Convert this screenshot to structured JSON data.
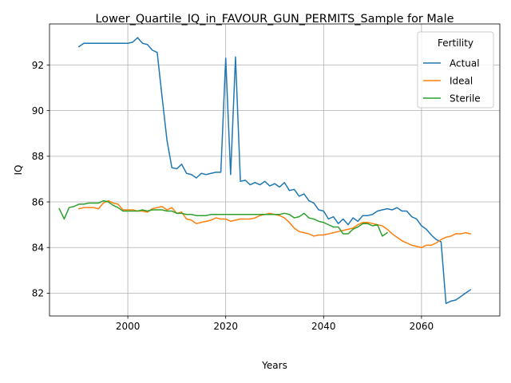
{
  "chart_data": {
    "type": "line",
    "title": "Lower_Quartile_IQ_in_FAVOUR_GUN_PERMITS_Sample for Male",
    "xlabel": "Years",
    "ylabel": "IQ",
    "xlim": [
      1984,
      2076
    ],
    "ylim": [
      81.0,
      93.8
    ],
    "xticks": [
      2000,
      2020,
      2040,
      2060
    ],
    "yticks": [
      82,
      84,
      86,
      88,
      90,
      92
    ],
    "grid": true,
    "legend": {
      "title": "Fertility",
      "placement": "top-right"
    },
    "series": [
      {
        "name": "Actual",
        "color": "#1f77b4",
        "points": [
          [
            1990,
            92.8
          ],
          [
            1991,
            92.95
          ],
          [
            1992,
            92.95
          ],
          [
            1993,
            92.95
          ],
          [
            1994,
            92.95
          ],
          [
            1995,
            92.95
          ],
          [
            1996,
            92.95
          ],
          [
            1997,
            92.95
          ],
          [
            1998,
            92.95
          ],
          [
            1999,
            92.95
          ],
          [
            2000,
            92.95
          ],
          [
            2001,
            93.0
          ],
          [
            2002,
            93.2
          ],
          [
            2003,
            92.95
          ],
          [
            2004,
            92.9
          ],
          [
            2005,
            92.65
          ],
          [
            2006,
            92.55
          ],
          [
            2007,
            90.6
          ],
          [
            2008,
            88.7
          ],
          [
            2009,
            87.5
          ],
          [
            2010,
            87.45
          ],
          [
            2011,
            87.65
          ],
          [
            2012,
            87.25
          ],
          [
            2013,
            87.2
          ],
          [
            2014,
            87.05
          ],
          [
            2015,
            87.25
          ],
          [
            2016,
            87.2
          ],
          [
            2017,
            87.25
          ],
          [
            2018,
            87.3
          ],
          [
            2019,
            87.3
          ],
          [
            2020,
            92.3
          ],
          [
            2021,
            87.2
          ],
          [
            2022,
            92.35
          ],
          [
            2023,
            86.9
          ],
          [
            2024,
            86.95
          ],
          [
            2025,
            86.75
          ],
          [
            2026,
            86.85
          ],
          [
            2027,
            86.75
          ],
          [
            2028,
            86.9
          ],
          [
            2029,
            86.7
          ],
          [
            2030,
            86.8
          ],
          [
            2031,
            86.65
          ],
          [
            2032,
            86.85
          ],
          [
            2033,
            86.5
          ],
          [
            2034,
            86.55
          ],
          [
            2035,
            86.25
          ],
          [
            2036,
            86.35
          ],
          [
            2037,
            86.05
          ],
          [
            2038,
            85.95
          ],
          [
            2039,
            85.65
          ],
          [
            2040,
            85.6
          ],
          [
            2041,
            85.25
          ],
          [
            2042,
            85.35
          ],
          [
            2043,
            85.05
          ],
          [
            2044,
            85.25
          ],
          [
            2045,
            85.0
          ],
          [
            2046,
            85.3
          ],
          [
            2047,
            85.15
          ],
          [
            2048,
            85.4
          ],
          [
            2049,
            85.4
          ],
          [
            2050,
            85.45
          ],
          [
            2051,
            85.6
          ],
          [
            2052,
            85.65
          ],
          [
            2053,
            85.7
          ],
          [
            2054,
            85.65
          ],
          [
            2055,
            85.75
          ],
          [
            2056,
            85.6
          ],
          [
            2057,
            85.6
          ],
          [
            2058,
            85.35
          ],
          [
            2059,
            85.25
          ],
          [
            2060,
            84.95
          ],
          [
            2061,
            84.8
          ],
          [
            2062,
            84.55
          ],
          [
            2063,
            84.35
          ],
          [
            2064,
            84.25
          ],
          [
            2065,
            81.55
          ],
          [
            2066,
            81.65
          ],
          [
            2067,
            81.7
          ],
          [
            2068,
            81.85
          ],
          [
            2069,
            82.0
          ],
          [
            2070,
            82.15
          ]
        ]
      },
      {
        "name": "Ideal",
        "color": "#ff7f0e",
        "points": [
          [
            1990,
            85.7
          ],
          [
            1991,
            85.75
          ],
          [
            1992,
            85.75
          ],
          [
            1993,
            85.75
          ],
          [
            1994,
            85.7
          ],
          [
            1995,
            85.95
          ],
          [
            1996,
            86.05
          ],
          [
            1997,
            85.95
          ],
          [
            1998,
            85.9
          ],
          [
            1999,
            85.65
          ],
          [
            2000,
            85.65
          ],
          [
            2001,
            85.65
          ],
          [
            2002,
            85.6
          ],
          [
            2003,
            85.6
          ],
          [
            2004,
            85.55
          ],
          [
            2005,
            85.7
          ],
          [
            2006,
            85.75
          ],
          [
            2007,
            85.8
          ],
          [
            2008,
            85.65
          ],
          [
            2009,
            85.75
          ],
          [
            2010,
            85.5
          ],
          [
            2011,
            85.55
          ],
          [
            2012,
            85.25
          ],
          [
            2013,
            85.2
          ],
          [
            2014,
            85.05
          ],
          [
            2015,
            85.1
          ],
          [
            2016,
            85.15
          ],
          [
            2017,
            85.2
          ],
          [
            2018,
            85.3
          ],
          [
            2019,
            85.25
          ],
          [
            2020,
            85.25
          ],
          [
            2021,
            85.15
          ],
          [
            2022,
            85.2
          ],
          [
            2023,
            85.25
          ],
          [
            2024,
            85.25
          ],
          [
            2025,
            85.25
          ],
          [
            2026,
            85.3
          ],
          [
            2027,
            85.4
          ],
          [
            2028,
            85.45
          ],
          [
            2029,
            85.5
          ],
          [
            2030,
            85.45
          ],
          [
            2031,
            85.4
          ],
          [
            2032,
            85.3
          ],
          [
            2033,
            85.1
          ],
          [
            2034,
            84.85
          ],
          [
            2035,
            84.7
          ],
          [
            2036,
            84.65
          ],
          [
            2037,
            84.6
          ],
          [
            2038,
            84.5
          ],
          [
            2039,
            84.55
          ],
          [
            2040,
            84.55
          ],
          [
            2041,
            84.6
          ],
          [
            2042,
            84.65
          ],
          [
            2043,
            84.7
          ],
          [
            2044,
            84.75
          ],
          [
            2045,
            84.8
          ],
          [
            2046,
            84.85
          ],
          [
            2047,
            85.0
          ],
          [
            2048,
            85.1
          ],
          [
            2049,
            85.1
          ],
          [
            2050,
            85.05
          ],
          [
            2051,
            85.0
          ],
          [
            2052,
            84.95
          ],
          [
            2053,
            84.8
          ],
          [
            2054,
            84.6
          ],
          [
            2055,
            84.45
          ],
          [
            2056,
            84.3
          ],
          [
            2057,
            84.2
          ],
          [
            2058,
            84.1
          ],
          [
            2059,
            84.05
          ],
          [
            2060,
            84.0
          ],
          [
            2061,
            84.1
          ],
          [
            2062,
            84.1
          ],
          [
            2063,
            84.2
          ],
          [
            2064,
            84.35
          ],
          [
            2065,
            84.45
          ],
          [
            2066,
            84.5
          ],
          [
            2067,
            84.6
          ],
          [
            2068,
            84.6
          ],
          [
            2069,
            84.65
          ],
          [
            2070,
            84.6
          ]
        ]
      },
      {
        "name": "Sterile",
        "color": "#2ca02c",
        "points": [
          [
            1986,
            85.7
          ],
          [
            1987,
            85.25
          ],
          [
            1988,
            85.75
          ],
          [
            1989,
            85.8
          ],
          [
            1990,
            85.9
          ],
          [
            1991,
            85.9
          ],
          [
            1992,
            85.95
          ],
          [
            1993,
            85.95
          ],
          [
            1994,
            85.95
          ],
          [
            1995,
            86.05
          ],
          [
            1996,
            86.0
          ],
          [
            1997,
            85.85
          ],
          [
            1998,
            85.75
          ],
          [
            1999,
            85.6
          ],
          [
            2000,
            85.6
          ],
          [
            2001,
            85.6
          ],
          [
            2002,
            85.6
          ],
          [
            2003,
            85.65
          ],
          [
            2004,
            85.6
          ],
          [
            2005,
            85.65
          ],
          [
            2006,
            85.65
          ],
          [
            2007,
            85.65
          ],
          [
            2008,
            85.6
          ],
          [
            2009,
            85.6
          ],
          [
            2010,
            85.5
          ],
          [
            2011,
            85.5
          ],
          [
            2012,
            85.45
          ],
          [
            2013,
            85.45
          ],
          [
            2014,
            85.4
          ],
          [
            2015,
            85.4
          ],
          [
            2016,
            85.4
          ],
          [
            2017,
            85.45
          ],
          [
            2018,
            85.45
          ],
          [
            2019,
            85.45
          ],
          [
            2020,
            85.45
          ],
          [
            2021,
            85.45
          ],
          [
            2022,
            85.45
          ],
          [
            2023,
            85.45
          ],
          [
            2024,
            85.45
          ],
          [
            2025,
            85.45
          ],
          [
            2026,
            85.45
          ],
          [
            2027,
            85.45
          ],
          [
            2028,
            85.45
          ],
          [
            2029,
            85.45
          ],
          [
            2030,
            85.45
          ],
          [
            2031,
            85.45
          ],
          [
            2032,
            85.5
          ],
          [
            2033,
            85.45
          ],
          [
            2034,
            85.3
          ],
          [
            2035,
            85.35
          ],
          [
            2036,
            85.5
          ],
          [
            2037,
            85.3
          ],
          [
            2038,
            85.25
          ],
          [
            2039,
            85.15
          ],
          [
            2040,
            85.1
          ],
          [
            2041,
            85.0
          ],
          [
            2042,
            84.9
          ],
          [
            2043,
            84.9
          ],
          [
            2044,
            84.6
          ],
          [
            2045,
            84.6
          ],
          [
            2046,
            84.8
          ],
          [
            2047,
            84.9
          ],
          [
            2048,
            85.05
          ],
          [
            2049,
            85.05
          ],
          [
            2050,
            84.95
          ],
          [
            2051,
            85.0
          ],
          [
            2052,
            84.5
          ],
          [
            2053,
            84.65
          ]
        ]
      }
    ]
  }
}
